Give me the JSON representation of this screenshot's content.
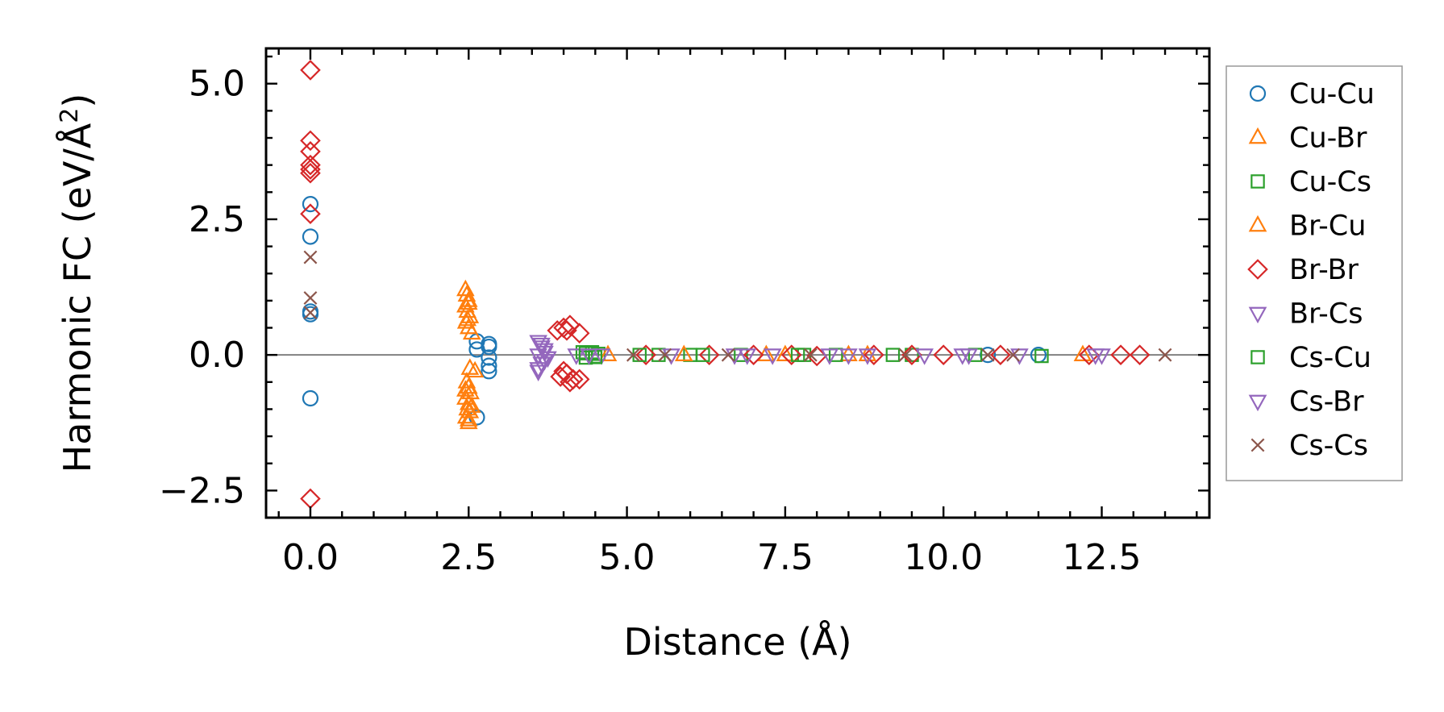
{
  "chart_data": {
    "type": "scatter",
    "xlabel": "Distance (Å)",
    "ylabel": "Harmonic FC (eV/Å²)",
    "ylabel_parts": {
      "main": "Harmonic FC (eV/Å",
      "sup": "2",
      "close": ")"
    },
    "xlim": [
      -0.7,
      14.2
    ],
    "ylim": [
      -3.0,
      5.65
    ],
    "xticks": [
      0.0,
      2.5,
      5.0,
      7.5,
      10.0,
      12.5
    ],
    "xtick_labels": [
      "0.0",
      "2.5",
      "5.0",
      "7.5",
      "10.0",
      "12.5"
    ],
    "yticks": [
      -2.5,
      0.0,
      2.5,
      5.0
    ],
    "ytick_labels": [
      "−2.5",
      "0.0",
      "2.5",
      "5.0"
    ],
    "reference_line_y": 0.0,
    "legend_position": "right, outside plot",
    "series": [
      {
        "name": "Cu-Cu",
        "marker": "circle",
        "color": "#1f77b4",
        "x": [
          0.0,
          0.0,
          0.0,
          0.0,
          0.0,
          2.63,
          2.63,
          2.63,
          2.82,
          2.82,
          2.82,
          2.82,
          2.82,
          10.7,
          11.5
        ],
        "y": [
          2.78,
          2.18,
          0.75,
          0.8,
          -0.8,
          0.25,
          0.1,
          -1.15,
          0.2,
          0.15,
          -0.05,
          -0.2,
          -0.3,
          0.0,
          0.0
        ]
      },
      {
        "name": "Cu-Br",
        "marker": "triangle-up",
        "color": "#ff7f0e",
        "x": [
          2.45,
          2.47,
          2.5,
          2.45,
          2.48,
          2.52,
          2.46,
          2.5,
          2.55,
          2.47,
          2.5,
          2.53,
          2.45,
          2.5,
          2.55,
          2.48,
          2.52,
          2.46,
          2.5,
          2.6,
          7.2,
          8.5,
          12.2
        ],
        "y": [
          1.2,
          1.1,
          1.0,
          0.9,
          0.8,
          0.7,
          0.6,
          0.5,
          0.4,
          -0.5,
          -0.6,
          -0.7,
          -0.8,
          -0.9,
          -0.95,
          -1.0,
          -1.05,
          -1.15,
          -1.2,
          -0.3,
          0.0,
          0.0,
          0.0
        ]
      },
      {
        "name": "Cu-Cs",
        "marker": "square",
        "color": "#2ca02c",
        "x": [
          4.3,
          4.45,
          4.55,
          4.35,
          4.5,
          5.5,
          6.0,
          6.8,
          7.8,
          8.3,
          9.5,
          10.5,
          11.55
        ],
        "y": [
          0.05,
          0.05,
          0.02,
          -0.05,
          -0.03,
          0.0,
          0.0,
          0.0,
          0.0,
          0.0,
          0.0,
          0.0,
          -0.02
        ]
      },
      {
        "name": "Br-Cu",
        "marker": "triangle-up",
        "color": "#ff7f0e",
        "x": [
          2.5,
          2.48,
          2.52,
          2.45,
          2.5,
          4.7,
          5.9,
          7.5,
          8.8
        ],
        "y": [
          0.95,
          0.65,
          -0.25,
          -0.65,
          -1.25,
          0.0,
          0.0,
          0.0,
          0.0
        ]
      },
      {
        "name": "Br-Br",
        "marker": "diamond",
        "color": "#d62728",
        "x": [
          0.0,
          0.0,
          0.0,
          0.0,
          0.0,
          0.0,
          0.0,
          0.0,
          3.9,
          4.0,
          4.05,
          4.1,
          4.25,
          3.95,
          4.05,
          4.15,
          4.25,
          4.0,
          4.1,
          5.3,
          6.3,
          7.0,
          7.6,
          8.0,
          8.9,
          9.5,
          10.0,
          10.9,
          12.3,
          12.8,
          13.1
        ],
        "y": [
          5.25,
          3.95,
          3.75,
          3.5,
          3.42,
          3.35,
          2.6,
          -2.65,
          0.45,
          0.5,
          0.45,
          0.55,
          0.4,
          -0.4,
          -0.35,
          -0.45,
          -0.45,
          -0.3,
          -0.5,
          0.0,
          0.0,
          0.0,
          0.0,
          -0.02,
          0.0,
          0.0,
          0.0,
          0.0,
          0.0,
          0.0,
          0.0
        ]
      },
      {
        "name": "Br-Cs",
        "marker": "triangle-down",
        "color": "#9467bd",
        "x": [
          3.6,
          3.65,
          3.7,
          3.6,
          3.75,
          3.65,
          3.6,
          3.7,
          4.2,
          4.6,
          5.7,
          6.7,
          7.3,
          8.2,
          8.8,
          9.7,
          10.3,
          11.2,
          12.4
        ],
        "y": [
          0.25,
          0.15,
          0.1,
          0.0,
          -0.05,
          -0.15,
          -0.25,
          0.05,
          0.0,
          0.0,
          0.0,
          0.0,
          0.0,
          0.0,
          0.0,
          0.0,
          0.0,
          0.0,
          0.0
        ]
      },
      {
        "name": "Cs-Cu",
        "marker": "square",
        "color": "#2ca02c",
        "x": [
          4.35,
          4.5,
          5.2,
          6.2,
          7.7,
          9.2
        ],
        "y": [
          0.03,
          -0.04,
          0.0,
          0.0,
          0.0,
          0.0
        ]
      },
      {
        "name": "Cs-Br",
        "marker": "triangle-down",
        "color": "#9467bd",
        "x": [
          3.65,
          3.7,
          3.6,
          4.4,
          6.9,
          8.5,
          10.4,
          12.5
        ],
        "y": [
          0.2,
          -0.1,
          -0.3,
          0.0,
          0.0,
          0.0,
          0.0,
          0.0
        ]
      },
      {
        "name": "Cs-Cs",
        "marker": "x",
        "color": "#8c564b",
        "x": [
          0.0,
          0.0,
          0.0,
          5.1,
          5.6,
          6.6,
          7.9,
          9.4,
          10.7,
          11.1,
          13.5
        ],
        "y": [
          1.8,
          1.05,
          0.78,
          0.0,
          0.0,
          0.0,
          0.0,
          0.0,
          0.0,
          0.0,
          0.0
        ]
      }
    ]
  }
}
